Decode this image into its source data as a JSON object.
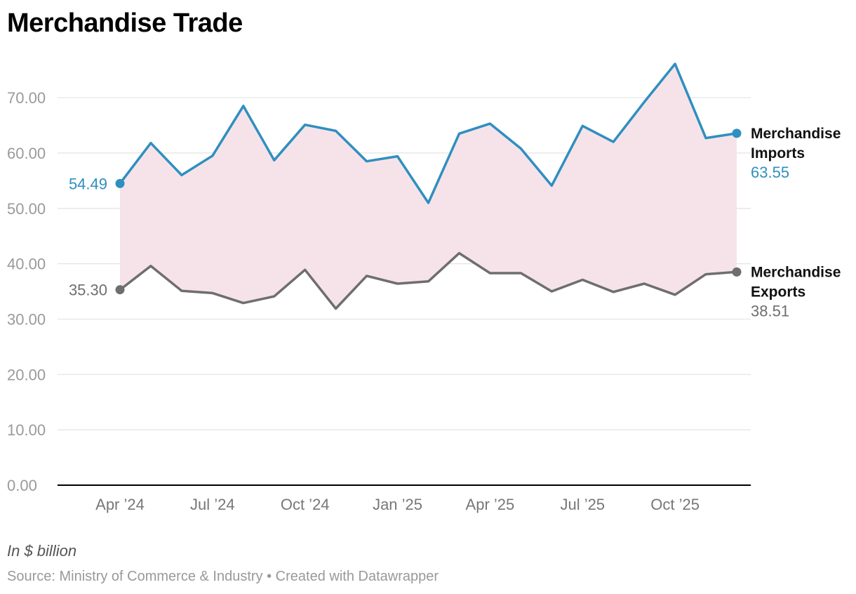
{
  "title": "Merchandise Trade",
  "note": "In $ billion",
  "source": "Source: Ministry of Commerce & Industry • Created with Datawrapper",
  "colors": {
    "imports": "#2f8fbf",
    "exports": "#6e6e6e",
    "fill": "#f6e3ea",
    "grid": "#e3e3e3",
    "axis": "#000000"
  },
  "chart_data": {
    "type": "line",
    "title": "Merchandise Trade",
    "ylabel": "In $ billion",
    "ylim": [
      0,
      78
    ],
    "yticks": [
      "0.00",
      "10.00",
      "20.00",
      "30.00",
      "40.00",
      "50.00",
      "60.00",
      "70.00"
    ],
    "grid": true,
    "x": [
      "Apr 2024",
      "May 2024",
      "Jun 2024",
      "Jul 2024",
      "Aug 2024",
      "Sep 2024",
      "Oct 2024",
      "Nov 2024",
      "Dec 2024",
      "Jan 2025",
      "Feb 2025",
      "Mar 2025",
      "Apr 2025",
      "May 2025",
      "Jun 2025",
      "Jul 2025",
      "Aug 2025",
      "Sep 2025",
      "Oct 2025",
      "Nov 2025",
      "Dec 2025"
    ],
    "xticks": [
      {
        "index": 0,
        "label": "Apr ’24"
      },
      {
        "index": 3,
        "label": "Jul ’24"
      },
      {
        "index": 6,
        "label": "Oct ’24"
      },
      {
        "index": 9,
        "label": "Jan ’25"
      },
      {
        "index": 12,
        "label": "Apr ’25"
      },
      {
        "index": 15,
        "label": "Jul ’25"
      },
      {
        "index": 18,
        "label": "Oct ’25"
      }
    ],
    "series": [
      {
        "key": "imports",
        "name_line1": "Merchandise",
        "name_line2": "Imports",
        "start_label": "54.49",
        "end_label": "63.55",
        "values": [
          54.49,
          61.8,
          56.0,
          59.5,
          68.5,
          58.7,
          65.1,
          64.0,
          58.5,
          59.4,
          51.0,
          63.5,
          65.3,
          60.8,
          54.1,
          64.9,
          62.0,
          69.2,
          76.1,
          62.7,
          63.55
        ]
      },
      {
        "key": "exports",
        "name_line1": "Merchandise",
        "name_line2": "Exports",
        "start_label": "35.30",
        "end_label": "38.51",
        "values": [
          35.3,
          39.6,
          35.1,
          34.7,
          32.9,
          34.1,
          38.9,
          31.9,
          37.8,
          36.4,
          36.8,
          41.9,
          38.3,
          38.3,
          35.0,
          37.1,
          34.9,
          36.4,
          34.4,
          38.1,
          38.51
        ]
      }
    ]
  }
}
